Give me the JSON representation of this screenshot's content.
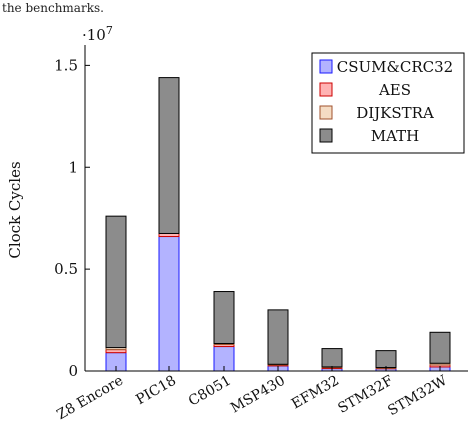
{
  "caption_fragment": "the benchmarks.",
  "chart_data": {
    "type": "bar",
    "stacked": true,
    "categories": [
      "Z8 Encore",
      "PIC18",
      "C8051",
      "MSP430",
      "EFM32",
      "STM32F",
      "STM32W"
    ],
    "series": [
      {
        "name": "CSUM&CRC32",
        "color": "#b3b3ff",
        "stroke": "#1a1aff",
        "values": [
          0.09,
          0.66,
          0.12,
          0.025,
          0.012,
          0.012,
          0.02
        ]
      },
      {
        "name": "AES",
        "color": "#ffb3b3",
        "stroke": "#cc0000",
        "values": [
          0.015,
          0.015,
          0.01,
          0.005,
          0.005,
          0.003,
          0.01
        ]
      },
      {
        "name": "DIJKSTRA",
        "color": "#f5dcc4",
        "stroke": "#a0522d",
        "values": [
          0.01,
          0.0,
          0.005,
          0.003,
          0.003,
          0.002,
          0.008
        ]
      },
      {
        "name": "MATH",
        "color": "#8c8c8c",
        "stroke": "#000000",
        "values": [
          0.645,
          0.765,
          0.255,
          0.267,
          0.09,
          0.083,
          0.152
        ]
      }
    ],
    "ylabel": "Clock Cycles",
    "y_multiplier": "·10",
    "y_multiplier_exp": "7",
    "ylim": [
      0,
      1.6
    ],
    "yticks": [
      {
        "value": 0,
        "label": "0"
      },
      {
        "value": 0.5,
        "label": "0.5"
      },
      {
        "value": 1,
        "label": "1"
      },
      {
        "value": 1.5,
        "label": "1.5"
      }
    ],
    "legend_position": "top-right",
    "grid": false
  }
}
